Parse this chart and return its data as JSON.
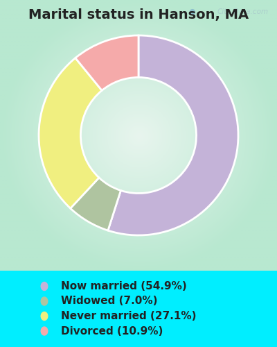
{
  "title": "Marital status in Hanson, MA",
  "categories": [
    "Now married",
    "Widowed",
    "Never married",
    "Divorced"
  ],
  "values": [
    54.9,
    7.0,
    27.1,
    10.9
  ],
  "colors": [
    "#c4b3d8",
    "#afc4a0",
    "#f0ef80",
    "#f5aaaa"
  ],
  "legend_labels": [
    "Now married (54.9%)",
    "Widowed (7.0%)",
    "Never married (27.1%)",
    "Divorced (10.9%)"
  ],
  "outer_background": "#00eeff",
  "chart_bg_color": "#c8eedd",
  "watermark": "City-Data.com",
  "title_fontsize": 14,
  "legend_fontsize": 11,
  "donut_width": 0.42,
  "start_angle": 90
}
